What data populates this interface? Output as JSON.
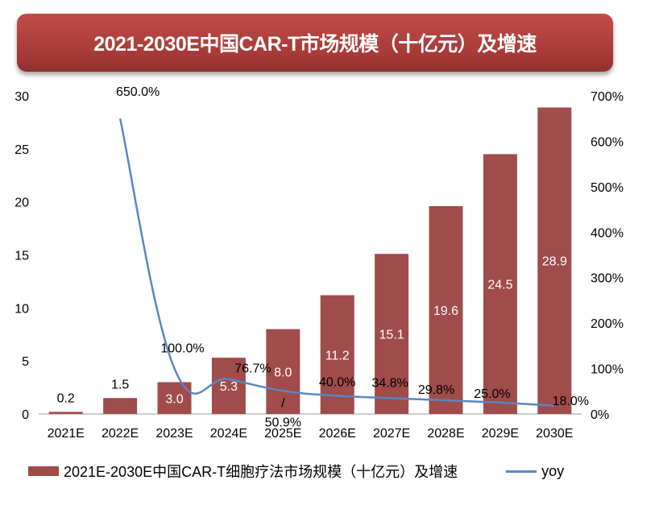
{
  "chart_data": {
    "type": "bar+line",
    "title": "2021-2030E中国CAR-T市场规模（十亿元）及增速",
    "categories": [
      "2021E",
      "2022E",
      "2023E",
      "2024E",
      "2025E",
      "2026E",
      "2027E",
      "2028E",
      "2029E",
      "2030E"
    ],
    "series": [
      {
        "name": "2021E-2030E中国CAR-T细胞疗法市场规模（十亿元）及增速",
        "type": "bar",
        "axis": "left",
        "color": "#a04c4a",
        "values": [
          0.2,
          1.5,
          3.0,
          5.3,
          8.0,
          11.2,
          15.1,
          19.6,
          24.5,
          28.9
        ],
        "labels": [
          "0.2",
          "1.5",
          "3.0",
          "5.3",
          "8.0",
          "11.2",
          "15.1",
          "19.6",
          "24.5",
          "28.9"
        ]
      },
      {
        "name": "yoy",
        "type": "line",
        "axis": "right",
        "color": "#5b86c0",
        "values": [
          null,
          650.0,
          100.0,
          76.7,
          50.9,
          40.0,
          34.8,
          29.8,
          25.0,
          18.0
        ],
        "labels": [
          "",
          "650.0%",
          "100.0%",
          "76.7%",
          "50.9%",
          "40.0%",
          "34.8%",
          "29.8%",
          "25.0%",
          "18.0%"
        ]
      }
    ],
    "separator_label": "/",
    "y_left": {
      "range": [
        0,
        30
      ],
      "ticks": [
        "0",
        "5",
        "10",
        "15",
        "20",
        "25",
        "30"
      ]
    },
    "y_right": {
      "range": [
        0,
        700
      ],
      "ticks": [
        "0%",
        "100%",
        "200%",
        "300%",
        "400%",
        "500%",
        "600%",
        "700%"
      ]
    },
    "grid": false,
    "legend": "bottom"
  }
}
